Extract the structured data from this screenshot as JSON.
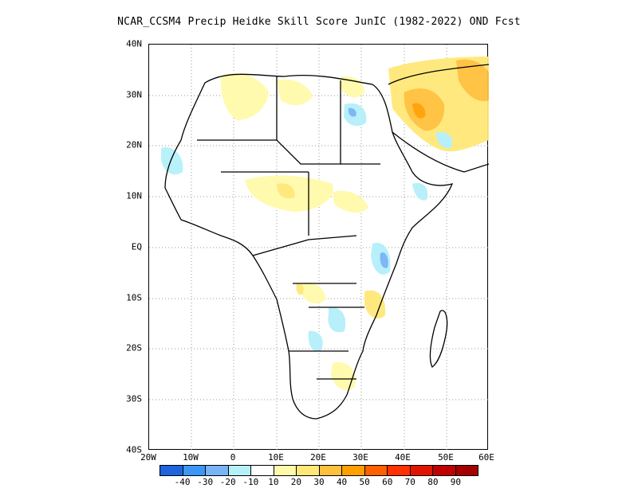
{
  "title": "NCAR_CCSM4 Precip Heidke Skill Score JunIC (1982-2022) OND Fcst",
  "axes": {
    "y_ticks": [
      "40N",
      "30N",
      "20N",
      "10N",
      "EQ",
      "10S",
      "20S",
      "30S",
      "40S"
    ],
    "x_ticks": [
      "20W",
      "10W",
      "0",
      "10E",
      "20E",
      "30E",
      "40E",
      "50E",
      "60E"
    ],
    "lon_range": [
      -20,
      60
    ],
    "lat_range": [
      -40,
      40
    ],
    "grid": "dotted"
  },
  "colorbar": {
    "colors": [
      "#1e64dc",
      "#3c96f5",
      "#78b4f5",
      "#b4f0fa",
      "#ffffff",
      "#fffaaa",
      "#ffe878",
      "#ffc03c",
      "#ffa000",
      "#ff6000",
      "#ff3200",
      "#e11400",
      "#c00000",
      "#a50000"
    ],
    "labels": [
      "-40",
      "-30",
      "-20",
      "-10",
      "10",
      "20",
      "30",
      "40",
      "50",
      "60",
      "70",
      "80",
      "90"
    ]
  }
}
